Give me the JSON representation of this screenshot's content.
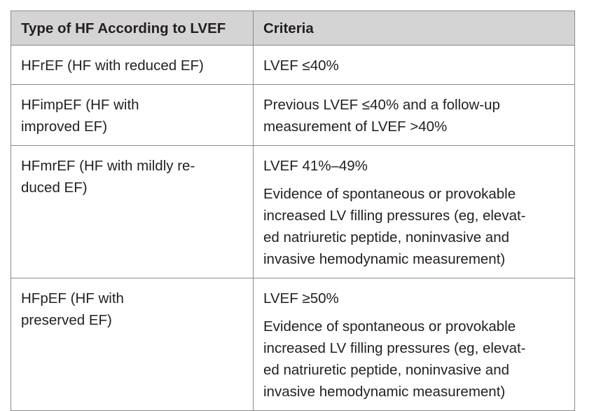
{
  "table": {
    "headers": [
      "Type of HF According to LVEF",
      "Criteria"
    ],
    "rows": [
      {
        "type_lines": [
          "HFrEF (HF with reduced EF)"
        ],
        "criteria": [
          [
            "LVEF ≤40%"
          ]
        ]
      },
      {
        "type_lines": [
          "HFimpEF (HF with",
          "improved EF)"
        ],
        "criteria": [
          [
            "Previous LVEF ≤40% and a follow-up",
            "measurement of LVEF >40%"
          ]
        ]
      },
      {
        "type_lines": [
          "HFmrEF (HF with mildly re-",
          "duced EF)"
        ],
        "criteria": [
          [
            "LVEF 41%–49%"
          ],
          [
            "Evidence of spontaneous or provokable",
            "increased LV filling pressures (eg, elevat-",
            "ed natriuretic peptide, noninvasive and",
            "invasive hemodynamic measurement)"
          ]
        ]
      },
      {
        "type_lines": [
          "HFpEF (HF with",
          "preserved EF)"
        ],
        "criteria": [
          [
            "LVEF ≥50%"
          ],
          [
            "Evidence of spontaneous or provokable",
            "increased LV filling pressures (eg, elevat-",
            "ed natriuretic peptide, noninvasive and",
            "invasive hemodynamic measurement)"
          ]
        ]
      }
    ]
  }
}
